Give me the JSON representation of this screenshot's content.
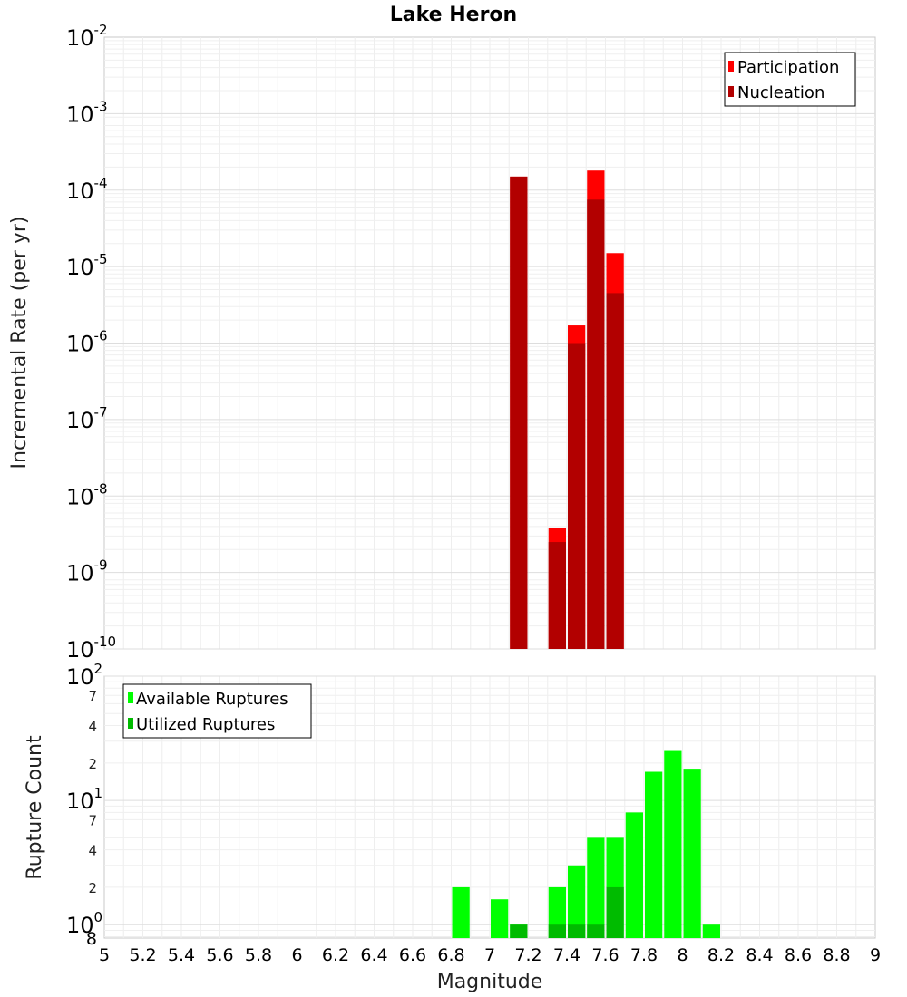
{
  "chart_data": [
    {
      "type": "bar",
      "title": "Lake Heron",
      "xlabel": "",
      "ylabel": "Incremental Rate (per yr)",
      "yscale": "log",
      "ylim": [
        1e-10,
        0.01
      ],
      "xlim": [
        5,
        9
      ],
      "bar_width": 0.1,
      "legend_position": "top-right",
      "y_ticks": [
        {
          "base": "10",
          "exp": "-10",
          "value": 1e-10
        },
        {
          "base": "10",
          "exp": "-9",
          "value": 1e-09
        },
        {
          "base": "10",
          "exp": "-8",
          "value": 1e-08
        },
        {
          "base": "10",
          "exp": "-7",
          "value": 1e-07
        },
        {
          "base": "10",
          "exp": "-6",
          "value": 1e-06
        },
        {
          "base": "10",
          "exp": "-5",
          "value": 1e-05
        },
        {
          "base": "10",
          "exp": "-4",
          "value": 0.0001
        },
        {
          "base": "10",
          "exp": "-3",
          "value": 0.001
        },
        {
          "base": "10",
          "exp": "-2",
          "value": 0.01
        }
      ],
      "series": [
        {
          "name": "Participation",
          "color": "#ff0000",
          "x": [
            7.15,
            7.35,
            7.45,
            7.55,
            7.65
          ],
          "values": [
            0.00015,
            3.8e-09,
            1.7e-06,
            0.00018,
            1.5e-05
          ]
        },
        {
          "name": "Nucleation",
          "color": "#b20000",
          "x": [
            7.15,
            7.35,
            7.45,
            7.55,
            7.65
          ],
          "values": [
            0.00015,
            2.5e-09,
            1e-06,
            7.5e-05,
            4.5e-06
          ]
        }
      ]
    },
    {
      "type": "bar",
      "title": "",
      "xlabel": "Magnitude",
      "ylabel": "Rupture Count",
      "yscale": "log",
      "ylim": [
        0.78,
        100
      ],
      "xlim": [
        5,
        9
      ],
      "bar_width": 0.1,
      "legend_position": "top-left",
      "x_ticks": [
        "5",
        "5.2",
        "5.4",
        "5.6",
        "5.8",
        "6",
        "6.2",
        "6.4",
        "6.6",
        "6.8",
        "7",
        "7.2",
        "7.4",
        "7.6",
        "7.8",
        "8",
        "8.2",
        "8.4",
        "8.6",
        "8.8",
        "9"
      ],
      "y_ticks": [
        {
          "base": "10",
          "exp": "0",
          "value": 1
        },
        {
          "base": "10",
          "exp": "1",
          "value": 10
        },
        {
          "base": "10",
          "exp": "2",
          "value": 100
        }
      ],
      "y_minor_labels": [
        {
          "label": "8",
          "value": 0.8
        },
        {
          "label": "2",
          "value": 2
        },
        {
          "label": "4",
          "value": 4
        },
        {
          "label": "7",
          "value": 7
        },
        {
          "label": "2",
          "value": 20
        },
        {
          "label": "4",
          "value": 40
        },
        {
          "label": "7",
          "value": 70
        }
      ],
      "series": [
        {
          "name": "Available Ruptures",
          "color": "#00ff00",
          "x": [
            6.85,
            7.05,
            7.15,
            7.35,
            7.45,
            7.55,
            7.65,
            7.75,
            7.85,
            7.95,
            8.05,
            8.15
          ],
          "values": [
            2,
            1.6,
            1,
            2,
            3,
            5,
            5,
            8,
            17,
            25,
            18,
            1
          ]
        },
        {
          "name": "Utilized Ruptures",
          "color": "#00bb00",
          "x": [
            7.15,
            7.35,
            7.45,
            7.55,
            7.65
          ],
          "values": [
            1,
            1,
            1,
            1,
            2
          ]
        }
      ]
    }
  ]
}
